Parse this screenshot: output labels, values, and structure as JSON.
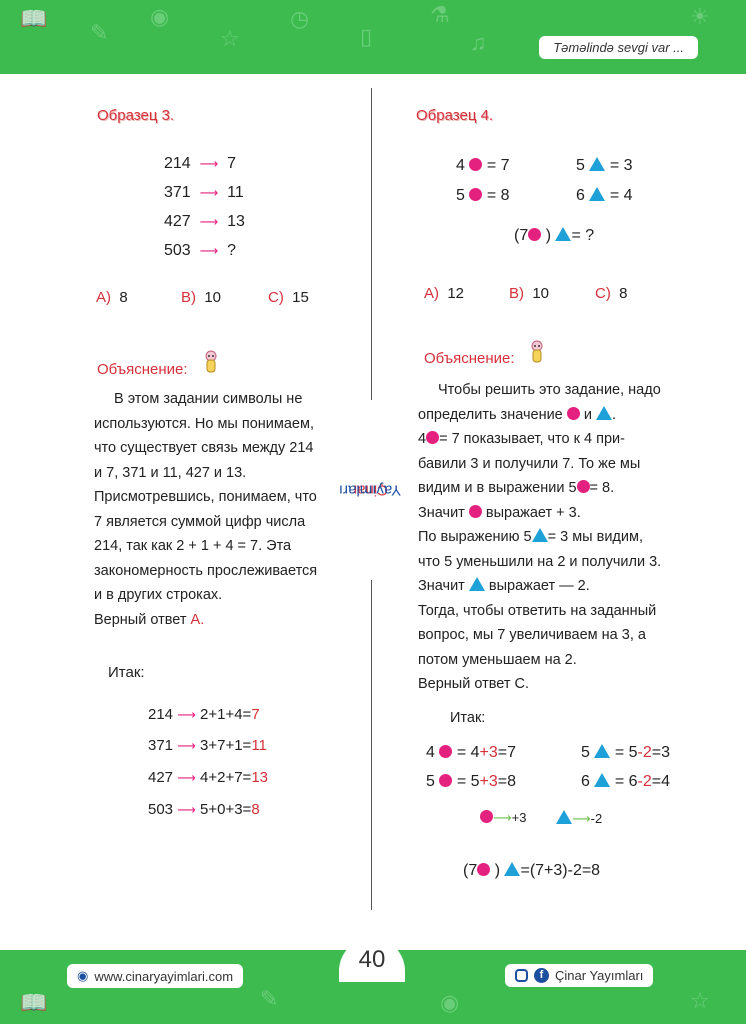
{
  "header": {
    "tagline": "Təməlində sevgi var ..."
  },
  "footer": {
    "website": "www.cinaryayimlari.com",
    "page_number": "40",
    "social_label": "Çinar Yayımları"
  },
  "divider_brand": {
    "part1": "Çinar",
    "part2": "Yayımları"
  },
  "left": {
    "title": "Образец 3.",
    "rows": [
      {
        "n": "214",
        "r": "7"
      },
      {
        "n": "371",
        "r": "11"
      },
      {
        "n": "427",
        "r": "13"
      },
      {
        "n": "503",
        "r": "?"
      }
    ],
    "answers": [
      {
        "label": "A)",
        "value": "8"
      },
      {
        "label": "B)",
        "value": "10"
      },
      {
        "label": "C)",
        "value": "15"
      }
    ],
    "explanation_heading": "Объяснение:",
    "lines": [
      "В этом задании символы не",
      "используются. Но мы понимаем,",
      "что существует связь между 214",
      "и 7,  371 и 11,  427 и 13.",
      "Присмотревшись, понимаем, что",
      "7 является суммой цифр числа",
      "214, так как  2 + 1 + 4 = 7. Эта",
      "закономерность прослеживается",
      "и в других строках."
    ],
    "correct_prefix": "Верный ответ",
    "correct_letter": "A.",
    "itak": "Итак:",
    "sums": [
      {
        "n": "214",
        "expr": "2+1+4=",
        "res": "7"
      },
      {
        "n": "371",
        "expr": "3+7+1=",
        "res": "11"
      },
      {
        "n": "427",
        "expr": "4+2+7=",
        "res": "13"
      },
      {
        "n": "503",
        "expr": "5+0+3=",
        "res": "8"
      }
    ]
  },
  "right": {
    "title": "Образец 4.",
    "eqs": [
      {
        "l": "4",
        "r": "= 7"
      },
      {
        "l": "5",
        "r": "= 8"
      },
      {
        "l": "5",
        "r": "= 3"
      },
      {
        "l": "6",
        "r": "= 4"
      }
    ],
    "question": {
      "open": "(7",
      "close": ")",
      "tail": "= ?"
    },
    "answers": [
      {
        "label": "A)",
        "value": "12"
      },
      {
        "label": "B)",
        "value": "10"
      },
      {
        "label": "C)",
        "value": "8"
      }
    ],
    "explanation_heading": "Объяснение:",
    "l1": "Чтобы решить это задание, надо",
    "l2a": "определить значение",
    "l2b": "и",
    "l2c": ".",
    "l3a": "4",
    "l3b": "= 7 показывает, что к 4 при-",
    "l4": "бавили  3 и получили 7. То же мы",
    "l5a": "видим и в выражении  5",
    "l5b": "= 8.",
    "l6a": "Значит",
    "l6b": "выражает  + 3.",
    "l7a": "По выражению  5",
    "l7b": "= 3 мы видим,",
    "l8": "что 5 уменьшили на  2 и получили  3.",
    "l9a": "Значит",
    "l9b": "выражает — 2.",
    "l10": "Тогда, чтобы ответить на заданный",
    "l11": "вопрос, мы 7 увеличиваем на  3, а",
    "l12": "потом уменьшаем на  2.",
    "l13": "Верный ответ  C.",
    "itak": "Итак:",
    "s1": {
      "a": "4",
      "b": "= 4",
      "c": "+3",
      "d": "=7"
    },
    "s2": {
      "a": "5",
      "b": "= 5",
      "c": "+3",
      "d": "=8"
    },
    "s3": {
      "a": "5",
      "b": "= 5",
      "c": "-2",
      "d": "=3"
    },
    "s4": {
      "a": "6",
      "b": "= 6",
      "c": "-2",
      "d": "=4"
    },
    "legend_plus": "+3",
    "legend_minus": "-2",
    "final": {
      "open": "(7",
      "close": ")",
      "eq": "=(7+3)-2=8"
    }
  }
}
